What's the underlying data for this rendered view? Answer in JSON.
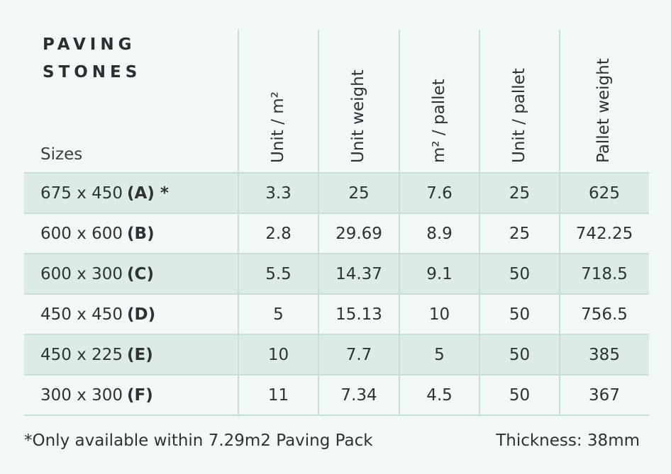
{
  "title": {
    "line1": "PAVING",
    "line2": "STONES"
  },
  "sizes_label": "Sizes",
  "columns": [
    "Unit / m²",
    "Unit weight",
    "m² / pallet",
    "Unit / pallet",
    "Pallet weight"
  ],
  "rows": [
    {
      "size": "675 x 450",
      "code": "(A) *",
      "values": [
        "3.3",
        "25",
        "7.6",
        "25",
        "625"
      ]
    },
    {
      "size": "600 x 600",
      "code": "(B)",
      "values": [
        "2.8",
        "29.69",
        "8.9",
        "25",
        "742.25"
      ]
    },
    {
      "size": "600 x 300",
      "code": "(C)",
      "values": [
        "5.5",
        "14.37",
        "9.1",
        "50",
        "718.5"
      ]
    },
    {
      "size": "450 x 450",
      "code": "(D)",
      "values": [
        "5",
        "15.13",
        "10",
        "50",
        "756.5"
      ]
    },
    {
      "size": "450 x 225",
      "code": "(E)",
      "values": [
        "10",
        "7.7",
        "5",
        "50",
        "385"
      ]
    },
    {
      "size": "300 x 300",
      "code": "(F)",
      "values": [
        "11",
        "7.34",
        "4.5",
        "50",
        "367"
      ]
    }
  ],
  "footnote": "*Only available within 7.29m2 Paving Pack",
  "thickness": "Thickness: 38mm",
  "colors": {
    "background": "#f2f8f6",
    "row_shade": "#dcece4",
    "rule": "#c5e1d6",
    "text": "#2e3236"
  }
}
